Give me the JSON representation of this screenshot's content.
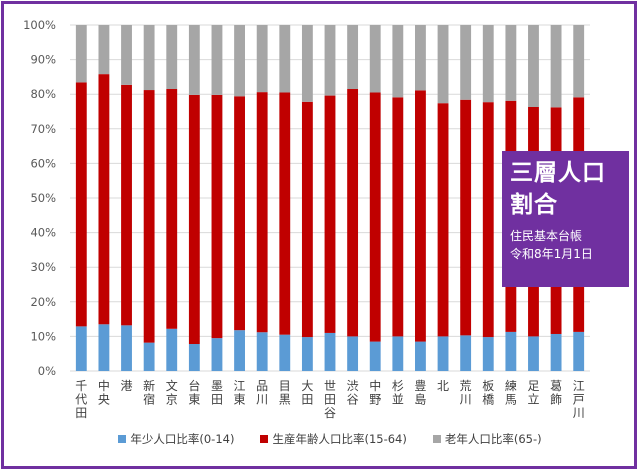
{
  "chart_data": {
    "type": "bar",
    "stacked": true,
    "categories": [
      "千代田",
      "中央",
      "港",
      "新宿",
      "文京",
      "台東",
      "墨田",
      "江東",
      "品川",
      "目黒",
      "大田",
      "世田谷",
      "渋谷",
      "中野",
      "杉並",
      "豊島",
      "北",
      "荒川",
      "板橋",
      "練馬",
      "足立",
      "葛飾",
      "江戸川"
    ],
    "series": [
      {
        "name": "年少人口比率(0-14)",
        "color": "#5b9bd5",
        "values": [
          12.9,
          13.5,
          13.2,
          8.2,
          12.2,
          7.8,
          9.5,
          11.8,
          11.2,
          10.5,
          9.8,
          11.0,
          10.0,
          8.5,
          10.0,
          8.5,
          10.0,
          10.3,
          9.8,
          11.3,
          10.0,
          10.7,
          11.3
        ]
      },
      {
        "name": "生産年齢人口比率(15-64)",
        "color": "#c00000",
        "values": [
          70.5,
          72.3,
          69.5,
          73.0,
          69.3,
          72.0,
          70.3,
          67.6,
          69.4,
          70.0,
          68.0,
          68.6,
          71.5,
          72.0,
          69.1,
          72.6,
          67.4,
          68.1,
          67.9,
          66.8,
          66.3,
          65.5,
          67.8
        ]
      },
      {
        "name": "老年人口比率(65-)",
        "color": "#a6a6a6",
        "values": [
          16.6,
          14.2,
          17.3,
          18.8,
          18.5,
          20.2,
          20.2,
          20.6,
          19.4,
          19.5,
          22.2,
          20.4,
          18.5,
          19.5,
          20.9,
          18.9,
          22.6,
          21.6,
          22.3,
          21.9,
          23.7,
          23.8,
          20.9
        ]
      }
    ],
    "ylim": [
      0,
      100
    ],
    "yticks": [
      "0%",
      "10%",
      "20%",
      "30%",
      "40%",
      "50%",
      "60%",
      "70%",
      "80%",
      "90%",
      "100%"
    ],
    "xlabel": "",
    "ylabel": "",
    "legend_position": "bottom"
  },
  "title": {
    "main": "三層人口割合",
    "sub1": "住民基本台帳",
    "sub2": "令和8年1月1日"
  },
  "colors": {
    "frame": "#7030a0",
    "title_bg": "#7030a0"
  }
}
